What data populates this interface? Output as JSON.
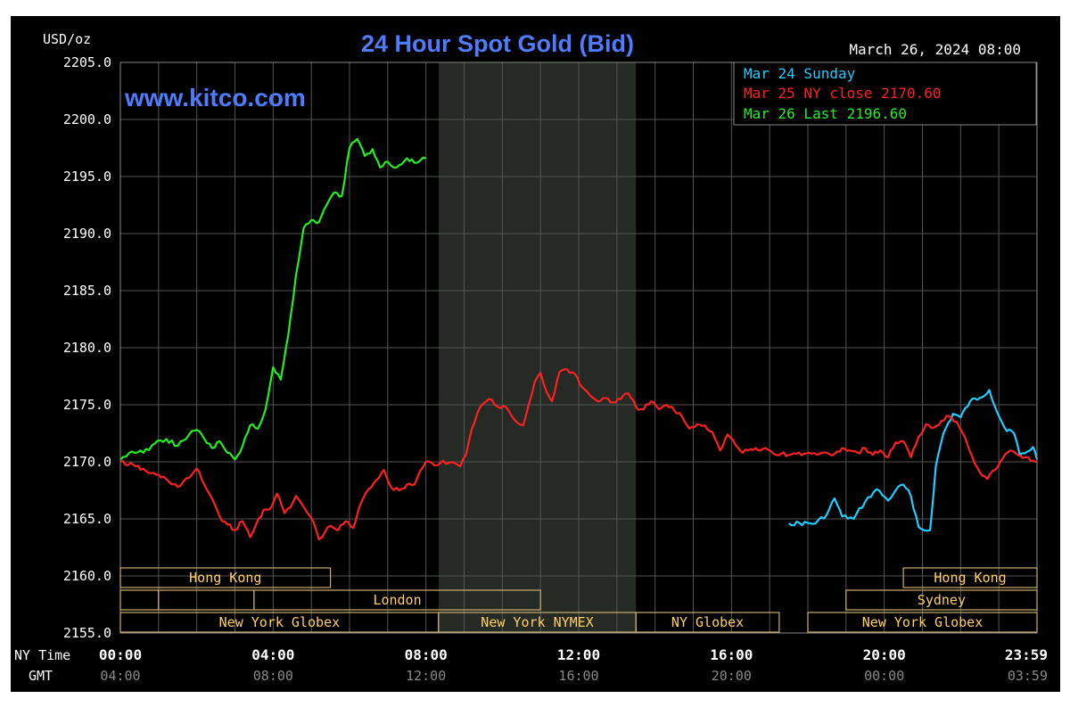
{
  "colors": {
    "background": "#000000",
    "grid": "#555555",
    "text": "#ffffff",
    "title": "#4f7bff",
    "sunday": "#22ccff",
    "ny_close": "#ff2020",
    "last": "#22ee22",
    "session_fill": "#252a25",
    "session_text": "#ffd060",
    "session_border": "#c8b070",
    "gmt_text": "#888888"
  },
  "chart_data": {
    "type": "line",
    "title": "24 Hour Spot Gold (Bid)",
    "watermark": "www.kitco.com",
    "timestamp": "March 26, 2024 08:00",
    "ylabel": "USD/oz",
    "ylim": [
      2155.0,
      2205.0
    ],
    "yticks": [
      "2205.0",
      "2200.0",
      "2195.0",
      "2190.0",
      "2185.0",
      "2180.0",
      "2175.0",
      "2170.0",
      "2165.0",
      "2160.0",
      "2155.0"
    ],
    "xlim": [
      0,
      24
    ],
    "grid": true,
    "legend_position": "top-right",
    "x_label_ny": "NY Time",
    "x_label_gmt": "GMT",
    "x_ticks_ny": [
      {
        "h": 0,
        "label": "00:00"
      },
      {
        "h": 4,
        "label": "04:00"
      },
      {
        "h": 8,
        "label": "08:00"
      },
      {
        "h": 12,
        "label": "12:00"
      },
      {
        "h": 16,
        "label": "16:00"
      },
      {
        "h": 20,
        "label": "20:00"
      },
      {
        "h": 23.983,
        "label": "23:59"
      }
    ],
    "x_ticks_gmt": [
      {
        "h": 0,
        "label": "04:00"
      },
      {
        "h": 4,
        "label": "08:00"
      },
      {
        "h": 8,
        "label": "12:00"
      },
      {
        "h": 12,
        "label": "16:00"
      },
      {
        "h": 16,
        "label": "20:00"
      },
      {
        "h": 20,
        "label": "00:00"
      },
      {
        "h": 23.983,
        "label": "03:59"
      }
    ],
    "nymex_shade": [
      8.3333,
      13.5
    ],
    "series": [
      {
        "name": "Mar 24 Sunday",
        "legend": "Mar 24 Sunday",
        "color_key": "sunday",
        "x": [
          17.5,
          18.2,
          18.5,
          18.7,
          18.9,
          19.2,
          19.5,
          19.8,
          20.1,
          20.3,
          20.5,
          20.7,
          20.9,
          21.05,
          21.2,
          21.35,
          21.55,
          21.8,
          22.0,
          22.25,
          22.5,
          22.75,
          22.95,
          23.15,
          23.4,
          23.55,
          23.75,
          23.9,
          24.0
        ],
        "values": [
          2164.6,
          2164.6,
          2165.4,
          2166.8,
          2165.2,
          2165.0,
          2166.5,
          2167.6,
          2166.6,
          2167.5,
          2168.0,
          2167.0,
          2164.3,
          2164.0,
          2164.0,
          2169.6,
          2172.5,
          2174.2,
          2173.9,
          2175.3,
          2175.6,
          2176.3,
          2174.4,
          2173.0,
          2172.5,
          2170.6,
          2170.9,
          2171.3,
          2170.2
        ]
      },
      {
        "name": "Mar 25 NY close 2170.60",
        "legend": "Mar 25 NY close 2170.60",
        "color_key": "ny_close",
        "x": [
          0,
          0.4,
          0.8,
          1.2,
          1.5,
          1.8,
          2.0,
          2.2,
          2.4,
          2.6,
          2.8,
          3.0,
          3.2,
          3.4,
          3.55,
          3.75,
          3.95,
          4.1,
          4.3,
          4.45,
          4.6,
          4.75,
          4.9,
          5.05,
          5.2,
          5.35,
          5.5,
          5.7,
          5.9,
          6.1,
          6.3,
          6.5,
          6.7,
          6.9,
          7.1,
          7.3,
          7.5,
          7.7,
          7.85,
          8.0,
          8.15,
          8.3,
          8.45,
          8.6,
          8.75,
          8.9,
          9.05,
          9.2,
          9.35,
          9.5,
          9.65,
          9.8,
          9.95,
          10.1,
          10.25,
          10.4,
          10.55,
          10.7,
          10.85,
          11.0,
          11.15,
          11.3,
          11.5,
          11.7,
          11.9,
          12.1,
          12.3,
          12.5,
          12.7,
          12.9,
          13.1,
          13.3,
          13.5,
          13.7,
          13.9,
          14.1,
          14.3,
          14.5,
          14.7,
          14.9,
          15.1,
          15.3,
          15.5,
          15.7,
          15.9,
          16.1,
          16.3,
          16.5,
          16.7,
          16.9,
          17.1,
          17.3,
          17.5,
          17.7,
          17.9,
          18.1,
          18.3,
          18.5,
          18.7,
          18.9,
          19.1,
          19.3,
          19.5,
          19.7,
          19.9,
          20.1,
          20.3,
          20.5,
          20.7,
          20.9,
          21.1,
          21.3,
          21.5,
          21.7,
          21.9,
          22.1,
          22.3,
          22.5,
          22.7,
          22.9,
          23.1,
          23.3,
          23.5,
          23.7,
          23.9,
          24.0
        ],
        "values": [
          2170.0,
          2169.6,
          2169.0,
          2168.5,
          2167.8,
          2168.6,
          2169.4,
          2168.0,
          2166.8,
          2165.2,
          2164.5,
          2164.0,
          2164.8,
          2163.4,
          2164.5,
          2165.8,
          2166.0,
          2167.2,
          2165.5,
          2166.0,
          2167.0,
          2166.3,
          2165.5,
          2164.8,
          2163.2,
          2163.8,
          2164.4,
          2164.0,
          2164.8,
          2164.2,
          2166.4,
          2167.6,
          2168.4,
          2169.3,
          2167.7,
          2167.5,
          2168.0,
          2168.0,
          2169.2,
          2170.0,
          2169.9,
          2169.7,
          2170.1,
          2169.9,
          2169.9,
          2169.6,
          2170.6,
          2172.9,
          2174.3,
          2175.1,
          2175.5,
          2175.0,
          2174.7,
          2174.8,
          2174.0,
          2173.4,
          2173.2,
          2175.1,
          2177.0,
          2177.8,
          2176.2,
          2175.3,
          2177.9,
          2178.1,
          2177.7,
          2176.5,
          2175.8,
          2175.3,
          2175.6,
          2175.2,
          2175.5,
          2176.0,
          2174.8,
          2174.6,
          2175.3,
          2174.6,
          2175.0,
          2174.5,
          2174.0,
          2172.9,
          2173.3,
          2173.2,
          2172.6,
          2171.0,
          2172.4,
          2171.5,
          2170.8,
          2171.1,
          2171.0,
          2171.2,
          2170.7,
          2170.7,
          2170.6,
          2170.7,
          2170.7,
          2170.7,
          2170.7,
          2170.8,
          2170.7,
          2171.2,
          2171.0,
          2170.8,
          2171.2,
          2170.6,
          2171.0,
          2170.4,
          2171.7,
          2171.8,
          2170.4,
          2172.2,
          2173.3,
          2173.0,
          2173.6,
          2174.0,
          2173.5,
          2172.3,
          2170.5,
          2169.1,
          2168.5,
          2169.3,
          2170.3,
          2171.0,
          2170.6,
          2170.4,
          2170.1,
          2170.0
        ]
      },
      {
        "name": "Mar 26 Last 2196.60",
        "legend": "Mar 26 Last 2196.60",
        "color_key": "last",
        "x": [
          0,
          0.3,
          0.6,
          0.9,
          1.2,
          1.5,
          1.8,
          2.0,
          2.2,
          2.4,
          2.6,
          2.8,
          3.0,
          3.2,
          3.4,
          3.6,
          3.8,
          4.0,
          4.2,
          4.4,
          4.6,
          4.8,
          5.0,
          5.2,
          5.4,
          5.6,
          5.8,
          6.0,
          6.2,
          6.4,
          6.6,
          6.8,
          7.0,
          7.15,
          7.3,
          7.5,
          7.7,
          7.85,
          8.0
        ],
        "values": [
          2170.2,
          2170.9,
          2170.8,
          2171.6,
          2172.0,
          2171.4,
          2172.4,
          2172.8,
          2172.0,
          2171.2,
          2171.8,
          2170.8,
          2170.2,
          2171.4,
          2173.2,
          2172.9,
          2174.6,
          2178.3,
          2177.2,
          2181.2,
          2186.4,
          2190.5,
          2191.2,
          2191.0,
          2192.5,
          2193.6,
          2193.3,
          2197.5,
          2198.3,
          2196.8,
          2197.4,
          2195.8,
          2196.3,
          2195.8,
          2196.0,
          2196.6,
          2196.2,
          2196.4,
          2196.6
        ]
      }
    ],
    "sessions": [
      {
        "label": "Hong Kong",
        "start": 0,
        "end": 5.5,
        "row": 1
      },
      {
        "label": "Hong Kong",
        "start": 20.5,
        "end": 24,
        "row": 1
      },
      {
        "label": "",
        "start": 0,
        "end": 1.0,
        "row": 2
      },
      {
        "label": "",
        "start": 1.0,
        "end": 3.5,
        "row": 2
      },
      {
        "label": "London",
        "start": 3.5,
        "end": 11.0,
        "row": 2
      },
      {
        "label": "Sydney",
        "start": 19.0,
        "end": 24,
        "row": 2
      },
      {
        "label": "New York Globex",
        "start": 0,
        "end": 8.33,
        "row": 3
      },
      {
        "label": "New York NYMEX",
        "start": 8.33,
        "end": 13.5,
        "row": 3
      },
      {
        "label": "NY Globex",
        "start": 13.5,
        "end": 17.25,
        "row": 3
      },
      {
        "label": "New York Globex",
        "start": 18.0,
        "end": 24,
        "row": 3
      }
    ]
  }
}
